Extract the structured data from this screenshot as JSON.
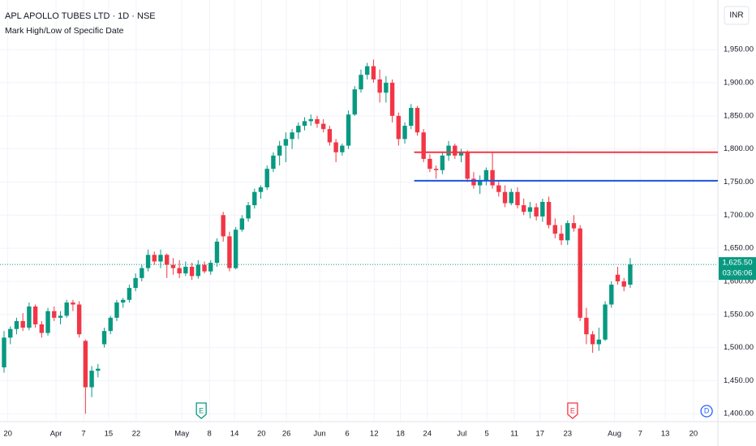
{
  "chart_data": {
    "type": "candlestick",
    "title": "APL APOLLO TUBES LTD · 1D · NSE",
    "subtitle": "Mark High/Low of Specific Date",
    "currency": "INR",
    "up_color": "#089981",
    "down_color": "#f23645",
    "open": [
      1470,
      1515,
      1528,
      1540,
      1530,
      1562,
      1535,
      1522,
      1555,
      1545,
      1548,
      1568,
      1565,
      1510,
      1440,
      1465,
      1505,
      1525,
      1545,
      1568,
      1572,
      1590,
      1605,
      1620,
      1640,
      1630,
      1640,
      1625,
      1620,
      1612,
      1622,
      1608,
      1625,
      1615,
      1628,
      1700,
      1668,
      1620,
      1678,
      1695,
      1715,
      1735,
      1742,
      1770,
      1790,
      1805,
      1815,
      1825,
      1835,
      1842,
      1845,
      1838,
      1830,
      1810,
      1795,
      1805,
      1852,
      1890,
      1912,
      1925,
      1905,
      1885,
      1900,
      1850,
      1815,
      1835,
      1862,
      1825,
      1785,
      1770,
      1768,
      1790,
      1805,
      1790,
      1795,
      1755,
      1745,
      1752,
      1768,
      1745,
      1735,
      1718,
      1735,
      1715,
      1705,
      1712,
      1698,
      1720,
      1685,
      1672,
      1662,
      1688,
      1680,
      1545,
      1520,
      1505,
      1512,
      1565,
      1610,
      1600,
      1595
    ],
    "high": [
      1525,
      1532,
      1545,
      1552,
      1568,
      1565,
      1540,
      1560,
      1562,
      1555,
      1572,
      1572,
      1570,
      1512,
      1472,
      1475,
      1530,
      1548,
      1572,
      1575,
      1595,
      1612,
      1625,
      1648,
      1645,
      1648,
      1642,
      1635,
      1632,
      1630,
      1628,
      1632,
      1630,
      1632,
      1665,
      1705,
      1675,
      1682,
      1700,
      1720,
      1740,
      1745,
      1775,
      1795,
      1812,
      1825,
      1830,
      1840,
      1848,
      1852,
      1850,
      1845,
      1835,
      1815,
      1808,
      1858,
      1895,
      1920,
      1930,
      1935,
      1920,
      1910,
      1905,
      1855,
      1840,
      1868,
      1865,
      1830,
      1792,
      1775,
      1795,
      1812,
      1808,
      1800,
      1798,
      1765,
      1760,
      1772,
      1795,
      1752,
      1745,
      1740,
      1742,
      1725,
      1720,
      1718,
      1725,
      1728,
      1695,
      1685,
      1692,
      1700,
      1685,
      1560,
      1525,
      1530,
      1570,
      1600,
      1622,
      1605,
      1635
    ],
    "low": [
      1462,
      1505,
      1520,
      1525,
      1526,
      1530,
      1515,
      1518,
      1540,
      1535,
      1545,
      1555,
      1515,
      1400,
      1425,
      1455,
      1500,
      1520,
      1540,
      1560,
      1568,
      1585,
      1600,
      1615,
      1625,
      1620,
      1605,
      1610,
      1605,
      1608,
      1602,
      1604,
      1612,
      1610,
      1622,
      1660,
      1615,
      1618,
      1675,
      1690,
      1710,
      1725,
      1738,
      1765,
      1775,
      1780,
      1800,
      1815,
      1828,
      1835,
      1832,
      1825,
      1805,
      1780,
      1790,
      1800,
      1850,
      1885,
      1905,
      1900,
      1870,
      1870,
      1840,
      1805,
      1808,
      1830,
      1820,
      1780,
      1765,
      1755,
      1762,
      1782,
      1785,
      1780,
      1750,
      1740,
      1732,
      1745,
      1740,
      1728,
      1712,
      1715,
      1710,
      1700,
      1695,
      1692,
      1690,
      1680,
      1665,
      1655,
      1655,
      1675,
      1540,
      1505,
      1492,
      1495,
      1510,
      1560,
      1595,
      1585,
      1590
    ],
    "close": [
      1515,
      1528,
      1540,
      1530,
      1562,
      1535,
      1522,
      1555,
      1545,
      1548,
      1568,
      1565,
      1520,
      1440,
      1465,
      1468,
      1525,
      1545,
      1568,
      1572,
      1590,
      1605,
      1620,
      1640,
      1630,
      1640,
      1625,
      1620,
      1612,
      1622,
      1608,
      1625,
      1615,
      1628,
      1660,
      1668,
      1620,
      1678,
      1695,
      1715,
      1735,
      1742,
      1770,
      1790,
      1805,
      1815,
      1825,
      1835,
      1842,
      1845,
      1838,
      1830,
      1810,
      1795,
      1805,
      1852,
      1890,
      1912,
      1925,
      1905,
      1885,
      1900,
      1850,
      1815,
      1835,
      1862,
      1825,
      1785,
      1770,
      1768,
      1790,
      1805,
      1790,
      1795,
      1755,
      1745,
      1752,
      1768,
      1745,
      1735,
      1718,
      1735,
      1715,
      1705,
      1712,
      1698,
      1720,
      1685,
      1672,
      1662,
      1688,
      1680,
      1545,
      1520,
      1505,
      1512,
      1565,
      1595,
      1600,
      1592,
      1625.5
    ],
    "last_price_label": "1,625.50",
    "countdown": "03:06:06",
    "hlines": [
      {
        "value": 1795,
        "color": "#f23645",
        "start": 65.5
      },
      {
        "value": 1752,
        "color": "#1e53e5",
        "start": 65.5
      }
    ],
    "events": [
      {
        "x": 31.5,
        "label": "E",
        "color": "#089981"
      },
      {
        "x": 90.8,
        "label": "E",
        "color": "#f23645"
      },
      {
        "x": 112.2,
        "label": "D",
        "color": "#2962ff"
      }
    ],
    "xlim": [
      -0.65,
      114
    ],
    "xticks": [
      {
        "value": 0.6,
        "label": "20"
      },
      {
        "value": 8.3,
        "label": "Apr"
      },
      {
        "value": 12.7,
        "label": "7"
      },
      {
        "value": 16.7,
        "label": "15"
      },
      {
        "value": 21.1,
        "label": "22"
      },
      {
        "value": 28.4,
        "label": "May"
      },
      {
        "value": 32.8,
        "label": "8"
      },
      {
        "value": 36.8,
        "label": "14"
      },
      {
        "value": 41.1,
        "label": "20"
      },
      {
        "value": 45.1,
        "label": "26"
      },
      {
        "value": 50.4,
        "label": "Jun"
      },
      {
        "value": 54.8,
        "label": "6"
      },
      {
        "value": 59.1,
        "label": "12"
      },
      {
        "value": 63.3,
        "label": "18"
      },
      {
        "value": 67.6,
        "label": "24"
      },
      {
        "value": 73.1,
        "label": "Jul"
      },
      {
        "value": 77.1,
        "label": "5"
      },
      {
        "value": 81.5,
        "label": "11"
      },
      {
        "value": 85.6,
        "label": "17"
      },
      {
        "value": 90.0,
        "label": "23"
      },
      {
        "value": 97.5,
        "label": "Aug"
      },
      {
        "value": 101.6,
        "label": "7"
      },
      {
        "value": 105.6,
        "label": "13"
      },
      {
        "value": 110.1,
        "label": "20"
      }
    ],
    "ylim": [
      1388,
      2025
    ],
    "yticks": [
      {
        "value": 1400,
        "label": "1,400.00"
      },
      {
        "value": 1450,
        "label": "1,450.00"
      },
      {
        "value": 1500,
        "label": "1,500.00"
      },
      {
        "value": 1550,
        "label": "1,550.00"
      },
      {
        "value": 1600,
        "label": "1,600.00"
      },
      {
        "value": 1650,
        "label": "1,650.00"
      },
      {
        "value": 1700,
        "label": "1,700.00"
      },
      {
        "value": 1750,
        "label": "1,750.00"
      },
      {
        "value": 1800,
        "label": "1,800.00"
      },
      {
        "value": 1850,
        "label": "1,850.00"
      },
      {
        "value": 1900,
        "label": "1,900.00"
      },
      {
        "value": 1950,
        "label": "1,950.00"
      }
    ],
    "grid": true
  }
}
